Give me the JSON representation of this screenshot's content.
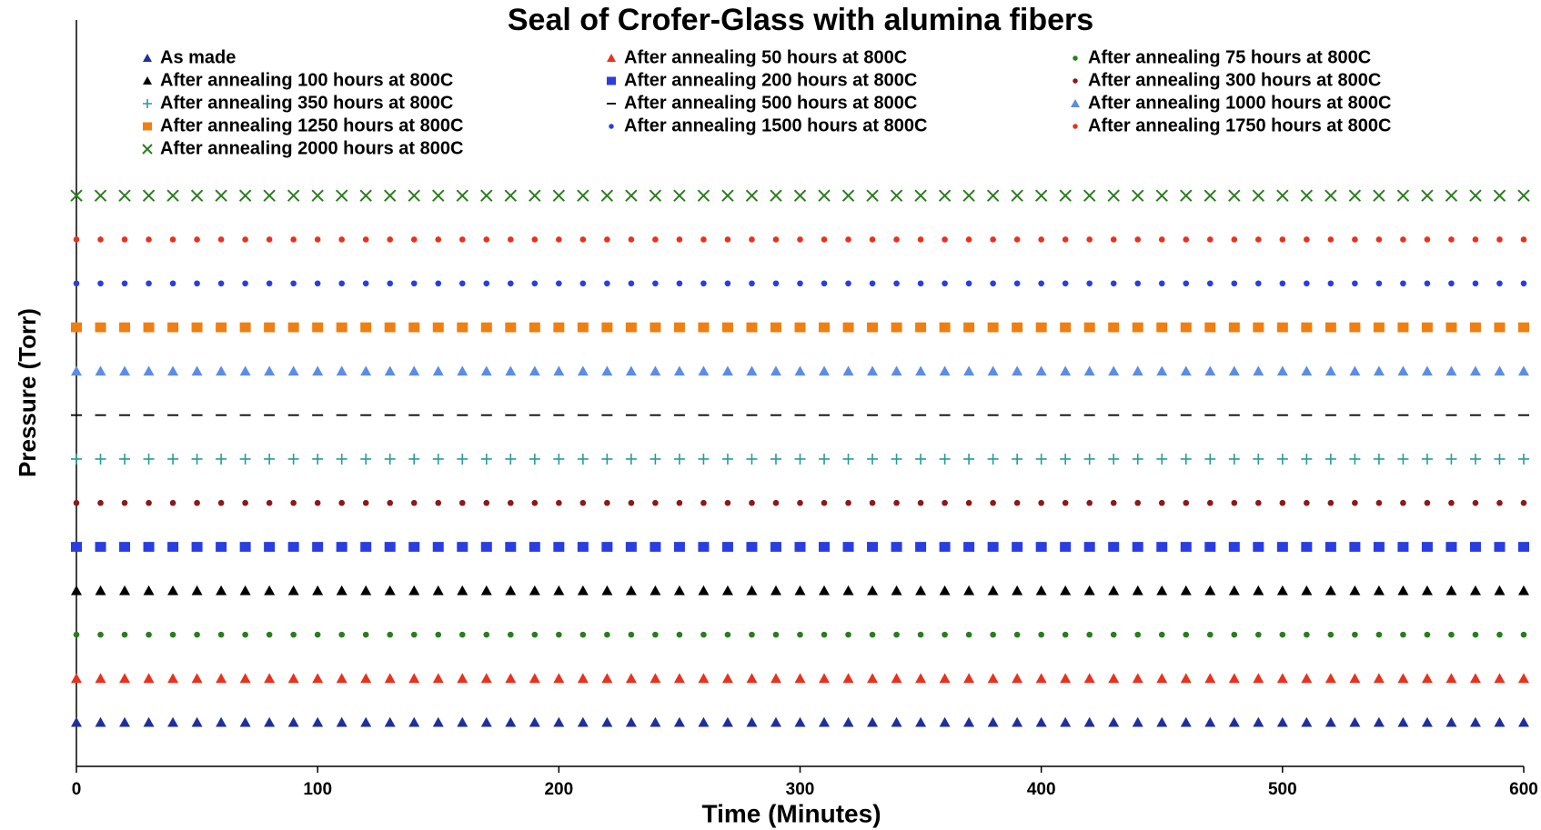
{
  "chart_data": {
    "type": "scatter",
    "title": "Seal of Crofer-Glass  with alumina fibers",
    "x_label": "Time (Minutes)",
    "y_label": "Pressure (Torr)",
    "xlim": [
      0,
      600
    ],
    "xticks": [
      0,
      100,
      200,
      300,
      400,
      500,
      600
    ],
    "ylim": [
      0,
      17
    ],
    "x": [
      0,
      10,
      20,
      30,
      40,
      50,
      60,
      70,
      80,
      90,
      100,
      110,
      120,
      130,
      140,
      150,
      160,
      170,
      180,
      190,
      200,
      210,
      220,
      230,
      240,
      250,
      260,
      270,
      280,
      290,
      300,
      310,
      320,
      330,
      340,
      350,
      360,
      370,
      380,
      390,
      400,
      410,
      420,
      430,
      440,
      450,
      460,
      470,
      480,
      490,
      500,
      510,
      520,
      530,
      540,
      550,
      560,
      570,
      580,
      590,
      600
    ],
    "series": [
      {
        "name": "As made",
        "color": "#1f2f9e",
        "marker": "triangle",
        "values": [
          1,
          1,
          1,
          1,
          1,
          1,
          1,
          1,
          1,
          1,
          1,
          1,
          1,
          1,
          1,
          1,
          1,
          1,
          1,
          1,
          1,
          1,
          1,
          1,
          1,
          1,
          1,
          1,
          1,
          1,
          1,
          1,
          1,
          1,
          1,
          1,
          1,
          1,
          1,
          1,
          1,
          1,
          1,
          1,
          1,
          1,
          1,
          1,
          1,
          1,
          1,
          1,
          1,
          1,
          1,
          1,
          1,
          1,
          1,
          1,
          1
        ]
      },
      {
        "name": "After annealing 50 hours at 800C",
        "color": "#e8321e",
        "marker": "triangle",
        "values": [
          2,
          2,
          2,
          2,
          2,
          2,
          2,
          2,
          2,
          2,
          2,
          2,
          2,
          2,
          2,
          2,
          2,
          2,
          2,
          2,
          2,
          2,
          2,
          2,
          2,
          2,
          2,
          2,
          2,
          2,
          2,
          2,
          2,
          2,
          2,
          2,
          2,
          2,
          2,
          2,
          2,
          2,
          2,
          2,
          2,
          2,
          2,
          2,
          2,
          2,
          2,
          2,
          2,
          2,
          2,
          2,
          2,
          2,
          2,
          2,
          2
        ]
      },
      {
        "name": "After annealing 75 hours at 800C",
        "color": "#2a7d1e",
        "marker": "circle",
        "values": [
          3,
          3,
          3,
          3,
          3,
          3,
          3,
          3,
          3,
          3,
          3,
          3,
          3,
          3,
          3,
          3,
          3,
          3,
          3,
          3,
          3,
          3,
          3,
          3,
          3,
          3,
          3,
          3,
          3,
          3,
          3,
          3,
          3,
          3,
          3,
          3,
          3,
          3,
          3,
          3,
          3,
          3,
          3,
          3,
          3,
          3,
          3,
          3,
          3,
          3,
          3,
          3,
          3,
          3,
          3,
          3,
          3,
          3,
          3,
          3,
          3
        ]
      },
      {
        "name": "After annealing 100 hours at 800C",
        "color": "#000000",
        "marker": "triangle",
        "values": [
          4,
          4,
          4,
          4,
          4,
          4,
          4,
          4,
          4,
          4,
          4,
          4,
          4,
          4,
          4,
          4,
          4,
          4,
          4,
          4,
          4,
          4,
          4,
          4,
          4,
          4,
          4,
          4,
          4,
          4,
          4,
          4,
          4,
          4,
          4,
          4,
          4,
          4,
          4,
          4,
          4,
          4,
          4,
          4,
          4,
          4,
          4,
          4,
          4,
          4,
          4,
          4,
          4,
          4,
          4,
          4,
          4,
          4,
          4,
          4,
          4
        ]
      },
      {
        "name": "After annealing 200 hours at 800C",
        "color": "#2a3de0",
        "marker": "square",
        "values": [
          5,
          5,
          5,
          5,
          5,
          5,
          5,
          5,
          5,
          5,
          5,
          5,
          5,
          5,
          5,
          5,
          5,
          5,
          5,
          5,
          5,
          5,
          5,
          5,
          5,
          5,
          5,
          5,
          5,
          5,
          5,
          5,
          5,
          5,
          5,
          5,
          5,
          5,
          5,
          5,
          5,
          5,
          5,
          5,
          5,
          5,
          5,
          5,
          5,
          5,
          5,
          5,
          5,
          5,
          5,
          5,
          5,
          5,
          5,
          5,
          5
        ]
      },
      {
        "name": "After annealing 300 hours at 800C",
        "color": "#8b1a1a",
        "marker": "circle",
        "values": [
          6,
          6,
          6,
          6,
          6,
          6,
          6,
          6,
          6,
          6,
          6,
          6,
          6,
          6,
          6,
          6,
          6,
          6,
          6,
          6,
          6,
          6,
          6,
          6,
          6,
          6,
          6,
          6,
          6,
          6,
          6,
          6,
          6,
          6,
          6,
          6,
          6,
          6,
          6,
          6,
          6,
          6,
          6,
          6,
          6,
          6,
          6,
          6,
          6,
          6,
          6,
          6,
          6,
          6,
          6,
          6,
          6,
          6,
          6,
          6,
          6
        ]
      },
      {
        "name": "After annealing 350 hours at 800C",
        "color": "#2a9a9a",
        "marker": "plus",
        "values": [
          7,
          7,
          7,
          7,
          7,
          7,
          7,
          7,
          7,
          7,
          7,
          7,
          7,
          7,
          7,
          7,
          7,
          7,
          7,
          7,
          7,
          7,
          7,
          7,
          7,
          7,
          7,
          7,
          7,
          7,
          7,
          7,
          7,
          7,
          7,
          7,
          7,
          7,
          7,
          7,
          7,
          7,
          7,
          7,
          7,
          7,
          7,
          7,
          7,
          7,
          7,
          7,
          7,
          7,
          7,
          7,
          7,
          7,
          7,
          7,
          7
        ]
      },
      {
        "name": "After annealing 500 hours at 800C",
        "color": "#000000",
        "marker": "dash",
        "values": [
          8,
          8,
          8,
          8,
          8,
          8,
          8,
          8,
          8,
          8,
          8,
          8,
          8,
          8,
          8,
          8,
          8,
          8,
          8,
          8,
          8,
          8,
          8,
          8,
          8,
          8,
          8,
          8,
          8,
          8,
          8,
          8,
          8,
          8,
          8,
          8,
          8,
          8,
          8,
          8,
          8,
          8,
          8,
          8,
          8,
          8,
          8,
          8,
          8,
          8,
          8,
          8,
          8,
          8,
          8,
          8,
          8,
          8,
          8,
          8,
          8
        ]
      },
      {
        "name": "After annealing 1000 hours at 800C",
        "color": "#5b8de8",
        "marker": "triangle",
        "values": [
          9,
          9,
          9,
          9,
          9,
          9,
          9,
          9,
          9,
          9,
          9,
          9,
          9,
          9,
          9,
          9,
          9,
          9,
          9,
          9,
          9,
          9,
          9,
          9,
          9,
          9,
          9,
          9,
          9,
          9,
          9,
          9,
          9,
          9,
          9,
          9,
          9,
          9,
          9,
          9,
          9,
          9,
          9,
          9,
          9,
          9,
          9,
          9,
          9,
          9,
          9,
          9,
          9,
          9,
          9,
          9,
          9,
          9,
          9,
          9,
          9
        ]
      },
      {
        "name": "After annealing 1250 hours at 800C",
        "color": "#f07f12",
        "marker": "square",
        "values": [
          10,
          10,
          10,
          10,
          10,
          10,
          10,
          10,
          10,
          10,
          10,
          10,
          10,
          10,
          10,
          10,
          10,
          10,
          10,
          10,
          10,
          10,
          10,
          10,
          10,
          10,
          10,
          10,
          10,
          10,
          10,
          10,
          10,
          10,
          10,
          10,
          10,
          10,
          10,
          10,
          10,
          10,
          10,
          10,
          10,
          10,
          10,
          10,
          10,
          10,
          10,
          10,
          10,
          10,
          10,
          10,
          10,
          10,
          10,
          10,
          10
        ]
      },
      {
        "name": "After annealing 1500 hours at 800C",
        "color": "#2a3de0",
        "marker": "circle",
        "values": [
          11,
          11,
          11,
          11,
          11,
          11,
          11,
          11,
          11,
          11,
          11,
          11,
          11,
          11,
          11,
          11,
          11,
          11,
          11,
          11,
          11,
          11,
          11,
          11,
          11,
          11,
          11,
          11,
          11,
          11,
          11,
          11,
          11,
          11,
          11,
          11,
          11,
          11,
          11,
          11,
          11,
          11,
          11,
          11,
          11,
          11,
          11,
          11,
          11,
          11,
          11,
          11,
          11,
          11,
          11,
          11,
          11,
          11,
          11,
          11,
          11
        ]
      },
      {
        "name": "After annealing 1750 hours at 800C",
        "color": "#e8321e",
        "marker": "circle",
        "values": [
          12,
          12,
          12,
          12,
          12,
          12,
          12,
          12,
          12,
          12,
          12,
          12,
          12,
          12,
          12,
          12,
          12,
          12,
          12,
          12,
          12,
          12,
          12,
          12,
          12,
          12,
          12,
          12,
          12,
          12,
          12,
          12,
          12,
          12,
          12,
          12,
          12,
          12,
          12,
          12,
          12,
          12,
          12,
          12,
          12,
          12,
          12,
          12,
          12,
          12,
          12,
          12,
          12,
          12,
          12,
          12,
          12,
          12,
          12,
          12,
          12
        ]
      },
      {
        "name": "After annealing 2000 hours at 800C",
        "color": "#2a7d1e",
        "marker": "cross",
        "values": [
          13,
          13,
          13,
          13,
          13,
          13,
          13,
          13,
          13,
          13,
          13,
          13,
          13,
          13,
          13,
          13,
          13,
          13,
          13,
          13,
          13,
          13,
          13,
          13,
          13,
          13,
          13,
          13,
          13,
          13,
          13,
          13,
          13,
          13,
          13,
          13,
          13,
          13,
          13,
          13,
          13,
          13,
          13,
          13,
          13,
          13,
          13,
          13,
          13,
          13,
          13,
          13,
          13,
          13,
          13,
          13,
          13,
          13,
          13,
          13,
          13
        ]
      }
    ]
  }
}
